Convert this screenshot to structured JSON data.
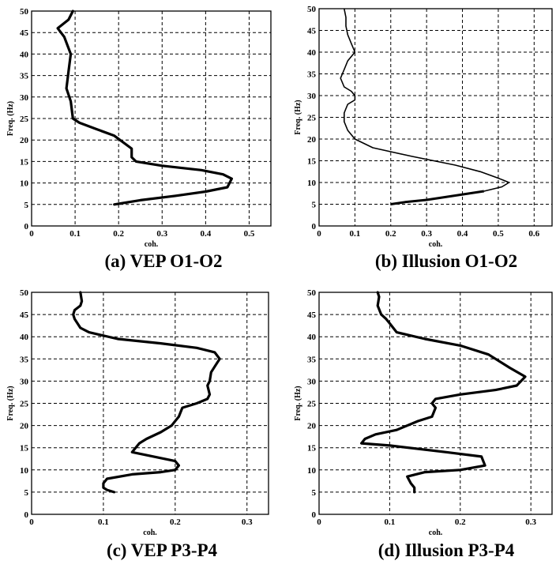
{
  "captions": {
    "a": "(a) VEP O1-O2",
    "b": "(b) Illusion O1-O2",
    "c": "(c) VEP P3-P4",
    "d": "(d) Illusion P3-P4"
  },
  "chart_data": [
    {
      "type": "line",
      "title": "(a) VEP O1-O2",
      "xlabel": "coh.",
      "ylabel": "Freq. (Hz)",
      "xlim": [
        0,
        0.55
      ],
      "ylim": [
        0,
        50
      ],
      "xticks": [
        "0",
        "0.1",
        "0.2",
        "0.3",
        "0.4",
        "0.5"
      ],
      "yticks": [
        "0",
        "5",
        "10",
        "15",
        "20",
        "25",
        "30",
        "35",
        "40",
        "45",
        "50"
      ],
      "grid": true,
      "line_width": "thick",
      "series": [
        {
          "x": [
            0.095,
            0.085,
            0.06,
            0.075,
            0.09,
            0.085,
            0.08,
            0.09,
            0.095,
            0.11,
            0.15,
            0.19,
            0.23,
            0.23,
            0.24,
            0.3,
            0.39,
            0.44,
            0.46,
            0.45,
            0.4,
            0.33,
            0.25,
            0.19
          ],
          "y": [
            50,
            48,
            46,
            44,
            40,
            36,
            32,
            29,
            25,
            24,
            22.5,
            21,
            18,
            16,
            15,
            14,
            13,
            12,
            11,
            9,
            8,
            7,
            6,
            5
          ]
        }
      ]
    },
    {
      "type": "line",
      "title": "(b) Illusion O1-O2",
      "xlabel": "coh.",
      "ylabel": "Freq. (Hz)",
      "xlim": [
        0,
        0.65
      ],
      "ylim": [
        0,
        50
      ],
      "xticks": [
        "0",
        "0.1",
        "0.2",
        "0.3",
        "0.4",
        "0.5",
        "0.6"
      ],
      "yticks": [
        "0",
        "5",
        "10",
        "15",
        "20",
        "25",
        "30",
        "35",
        "40",
        "45",
        "50"
      ],
      "grid": true,
      "series": [
        {
          "x": [
            0.07,
            0.075,
            0.075,
            0.08,
            0.09,
            0.1,
            0.08,
            0.07,
            0.06,
            0.07,
            0.09,
            0.1,
            0.1,
            0.08,
            0.075,
            0.07,
            0.07,
            0.08,
            0.1,
            0.15,
            0.26,
            0.38,
            0.45,
            0.5,
            0.53,
            0.51,
            0.46,
            0.38,
            0.3,
            0.24,
            0.2
          ],
          "y": [
            50,
            48,
            46,
            44,
            42,
            40,
            38,
            36,
            34,
            32,
            31,
            30,
            29,
            28,
            27,
            26,
            24,
            22,
            20,
            18,
            16,
            14,
            12.5,
            11,
            10,
            9,
            8,
            7,
            6,
            5.5,
            5
          ]
        }
      ]
    },
    {
      "type": "line",
      "title": "(c) VEP P3-P4",
      "xlabel": "coh.",
      "ylabel": "Freq. (Hz)",
      "xlim": [
        0,
        0.33
      ],
      "ylim": [
        0,
        50
      ],
      "xticks": [
        "0",
        "0.1",
        "0.2",
        "0.3"
      ],
      "yticks": [
        "0",
        "5",
        "10",
        "15",
        "20",
        "25",
        "30",
        "35",
        "40",
        "45",
        "50"
      ],
      "grid": true,
      "series": [
        {
          "x": [
            0.068,
            0.07,
            0.068,
            0.06,
            0.058,
            0.06,
            0.068,
            0.08,
            0.12,
            0.18,
            0.23,
            0.255,
            0.262,
            0.258,
            0.25,
            0.248,
            0.245,
            0.248,
            0.245,
            0.23,
            0.21,
            0.205,
            0.2,
            0.195,
            0.18,
            0.16,
            0.15,
            0.14,
            0.17,
            0.2,
            0.205,
            0.2,
            0.18,
            0.14,
            0.105,
            0.1,
            0.1,
            0.105,
            0.115
          ],
          "y": [
            50,
            48,
            47,
            46,
            45,
            44,
            42,
            41,
            39.5,
            38.5,
            37.5,
            36.5,
            35,
            34,
            32,
            30,
            29,
            27,
            26,
            25,
            24,
            22,
            21,
            20,
            18.5,
            17,
            16,
            14,
            13,
            12,
            11,
            10,
            9.5,
            9,
            8,
            7,
            6,
            5.5,
            5
          ]
        }
      ]
    },
    {
      "type": "line",
      "title": "(d) Illusion P3-P4",
      "xlabel": "coh.",
      "ylabel": "Freq. (Hz)",
      "xlim": [
        0,
        0.33
      ],
      "ylim": [
        0,
        50
      ],
      "xticks": [
        "0",
        "0.1",
        "0.2",
        "0.3"
      ],
      "yticks": [
        "0",
        "5",
        "10",
        "15",
        "20",
        "25",
        "30",
        "35",
        "40",
        "45",
        "50"
      ],
      "grid": true,
      "series": [
        {
          "x": [
            0.083,
            0.085,
            0.083,
            0.088,
            0.095,
            0.1,
            0.11,
            0.15,
            0.2,
            0.24,
            0.27,
            0.292,
            0.28,
            0.25,
            0.2,
            0.165,
            0.16,
            0.165,
            0.16,
            0.14,
            0.11,
            0.08,
            0.065,
            0.06,
            0.1,
            0.18,
            0.23,
            0.235,
            0.2,
            0.15,
            0.125,
            0.13,
            0.135,
            0.135
          ],
          "y": [
            50,
            49,
            47,
            45,
            44,
            43,
            41,
            39.5,
            38,
            36,
            33,
            31,
            29,
            28,
            27,
            26,
            25,
            24,
            22,
            21,
            19,
            18,
            17,
            16,
            15.5,
            14,
            13,
            11,
            10,
            9.5,
            8.5,
            7,
            6,
            5
          ]
        }
      ]
    }
  ]
}
